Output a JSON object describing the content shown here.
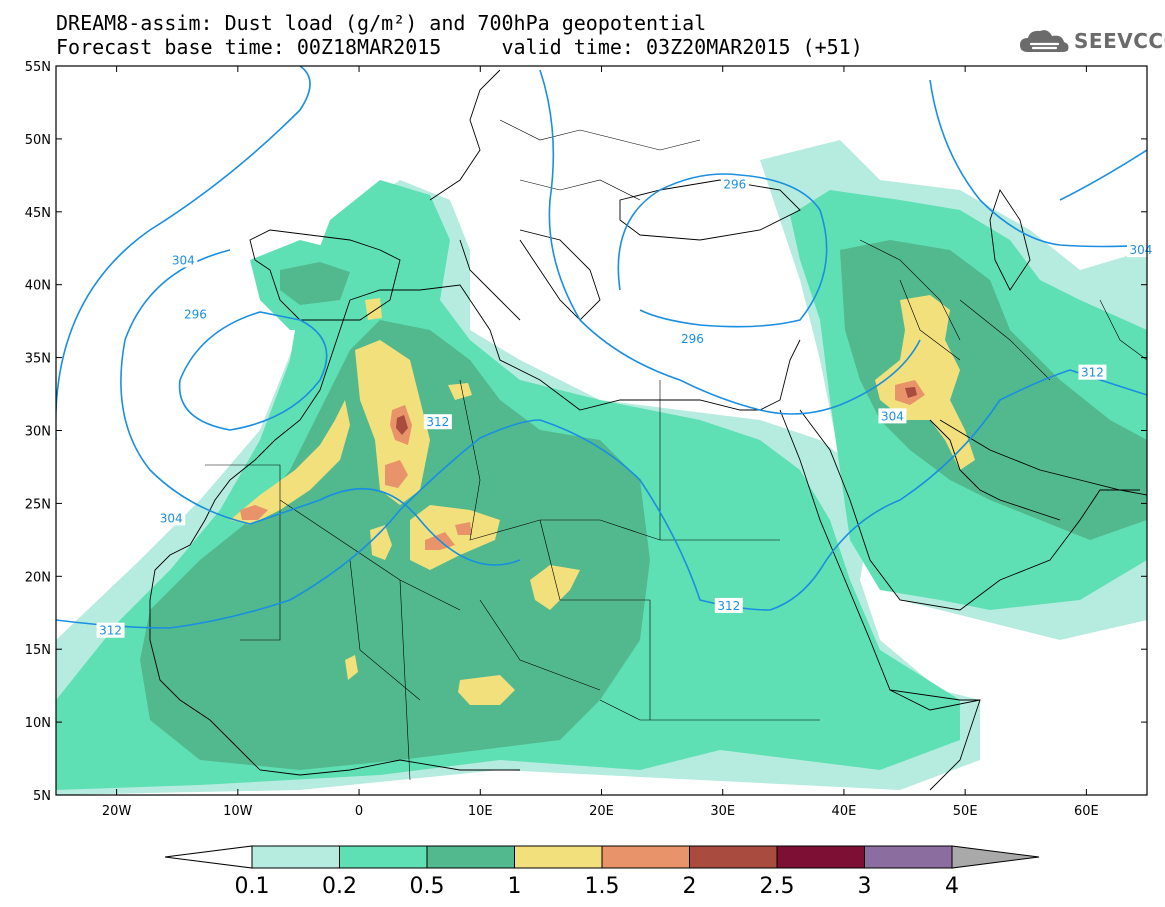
{
  "header": {
    "title_line1": "DREAM8-assim: Dust load (g/m²) and 700hPa geopotential",
    "title_line2": "Forecast base time: 00Z18MAR2015     valid time: 03Z20MAR2015 (+51)",
    "logo_text": "SEEVCCC",
    "logo_icon": "cloud-icon"
  },
  "map": {
    "projection": "lat-lon",
    "lon_range": [
      -25,
      65
    ],
    "lat_range": [
      5,
      55
    ],
    "lat_ticks": [
      "55N",
      "50N",
      "45N",
      "40N",
      "35N",
      "30N",
      "25N",
      "20N",
      "15N",
      "10N",
      "5N"
    ],
    "lat_values": [
      55,
      50,
      45,
      40,
      35,
      30,
      25,
      20,
      15,
      10,
      5
    ],
    "lon_ticks": [
      "20W",
      "10W",
      "0",
      "10E",
      "20E",
      "30E",
      "40E",
      "50E",
      "60E"
    ],
    "lon_values": [
      -20,
      -10,
      0,
      10,
      20,
      30,
      40,
      50,
      60
    ],
    "contour_color": "#1a8fe0",
    "contour_labels": [
      {
        "text": "296",
        "lon": 31,
        "lat": 46.8
      },
      {
        "text": "304",
        "lon": -14.5,
        "lat": 41.6
      },
      {
        "text": "296",
        "lon": -13.5,
        "lat": 37.9
      },
      {
        "text": "312",
        "lon": 6.5,
        "lat": 30.5
      },
      {
        "text": "304",
        "lon": -15.5,
        "lat": 23.9
      },
      {
        "text": "312",
        "lon": -20.5,
        "lat": 16.2
      },
      {
        "text": "312",
        "lon": 30.5,
        "lat": 17.9
      },
      {
        "text": "304",
        "lon": 44,
        "lat": 30.9
      },
      {
        "text": "312",
        "lon": 60.5,
        "lat": 33.9
      },
      {
        "text": "304",
        "lon": 64.5,
        "lat": 42.3
      },
      {
        "text": "296",
        "lon": 27.5,
        "lat": 36.2
      }
    ]
  },
  "colorbar": {
    "labels": [
      "0.1",
      "0.2",
      "0.5",
      "1",
      "1.5",
      "2",
      "2.5",
      "3",
      "4"
    ],
    "colors": [
      "#ffffff",
      "#b6ecdf",
      "#5fe0b4",
      "#52b88e",
      "#f2e07c",
      "#e9936a",
      "#a94b3e",
      "#7d0f35",
      "#8c6d9f",
      "#a9a9a9"
    ]
  }
}
